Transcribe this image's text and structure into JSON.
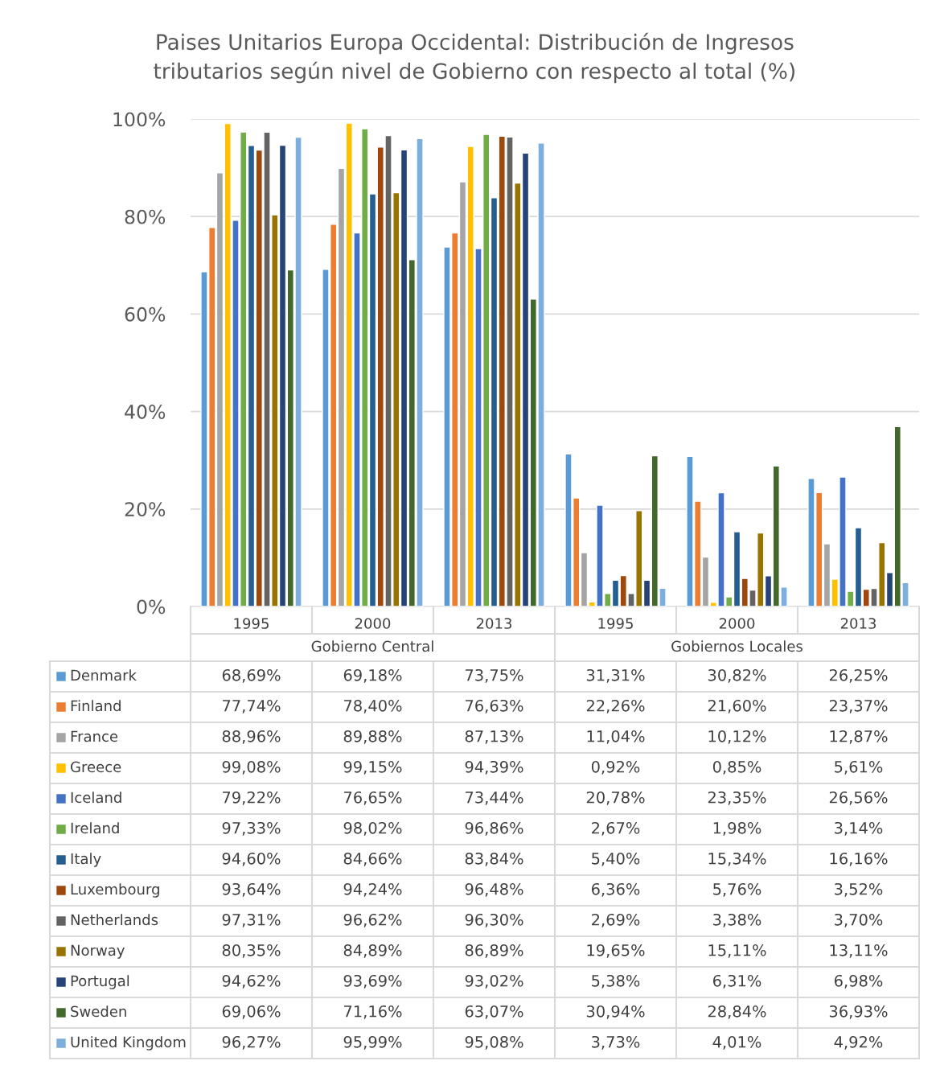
{
  "chart_data": {
    "type": "bar",
    "title": "Paises Unitarios Europa Occidental: Distribución de Ingresos\ntributarios según nivel de Gobierno con respecto al total (%)",
    "categories": [
      "1995",
      "2000",
      "2013",
      "1995",
      "2000",
      "2013"
    ],
    "annotations": [
      "Gobierno Central",
      "Gobiernos Locales"
    ],
    "ylim": [
      0,
      100
    ],
    "yticks": [
      {
        "value": 0,
        "label": "0%"
      },
      {
        "value": 20,
        "label": "20%"
      },
      {
        "value": 40,
        "label": "40%"
      },
      {
        "value": 60,
        "label": "60%"
      },
      {
        "value": 80,
        "label": "80%"
      },
      {
        "value": 100,
        "label": "100%"
      }
    ],
    "grid": "y",
    "legend": "bottom",
    "series": [
      {
        "name": "Denmark",
        "color": "#5b9bd5",
        "values": [
          68.69,
          69.18,
          73.75,
          31.31,
          30.82,
          26.25
        ],
        "value_labels": [
          "68,69%",
          "69,18%",
          "73,75%",
          "31,31%",
          "30,82%",
          "26,25%"
        ]
      },
      {
        "name": "Finland",
        "color": "#ed7d31",
        "values": [
          77.74,
          78.4,
          76.63,
          22.26,
          21.6,
          23.37
        ],
        "value_labels": [
          "77,74%",
          "78,40%",
          "76,63%",
          "22,26%",
          "21,60%",
          "23,37%"
        ]
      },
      {
        "name": "France",
        "color": "#a5a5a5",
        "values": [
          88.96,
          89.88,
          87.13,
          11.04,
          10.12,
          12.87
        ],
        "value_labels": [
          "88,96%",
          "89,88%",
          "87,13%",
          "11,04%",
          "10,12%",
          "12,87%"
        ]
      },
      {
        "name": "Greece",
        "color": "#ffc000",
        "values": [
          99.08,
          99.15,
          94.39,
          0.92,
          0.85,
          5.61
        ],
        "value_labels": [
          "99,08%",
          "99,15%",
          "94,39%",
          "0,92%",
          "0,85%",
          "5,61%"
        ]
      },
      {
        "name": "Iceland",
        "color": "#4472c4",
        "values": [
          79.22,
          76.65,
          73.44,
          20.78,
          23.35,
          26.56
        ],
        "value_labels": [
          "79,22%",
          "76,65%",
          "73,44%",
          "20,78%",
          "23,35%",
          "26,56%"
        ]
      },
      {
        "name": "Ireland",
        "color": "#70ad47",
        "values": [
          97.33,
          98.02,
          96.86,
          2.67,
          1.98,
          3.14
        ],
        "value_labels": [
          "97,33%",
          "98,02%",
          "96,86%",
          "2,67%",
          "1,98%",
          "3,14%"
        ]
      },
      {
        "name": "Italy",
        "color": "#255e91",
        "values": [
          94.6,
          84.66,
          83.84,
          5.4,
          15.34,
          16.16
        ],
        "value_labels": [
          "94,60%",
          "84,66%",
          "83,84%",
          "5,40%",
          "15,34%",
          "16,16%"
        ]
      },
      {
        "name": "Luxembourg",
        "color": "#9e480e",
        "values": [
          93.64,
          94.24,
          96.48,
          6.36,
          5.76,
          3.52
        ],
        "value_labels": [
          "93,64%",
          "94,24%",
          "96,48%",
          "6,36%",
          "5,76%",
          "3,52%"
        ]
      },
      {
        "name": "Netherlands",
        "color": "#636363",
        "values": [
          97.31,
          96.62,
          96.3,
          2.69,
          3.38,
          3.7
        ],
        "value_labels": [
          "97,31%",
          "96,62%",
          "96,30%",
          "2,69%",
          "3,38%",
          "3,70%"
        ]
      },
      {
        "name": "Norway",
        "color": "#997300",
        "values": [
          80.35,
          84.89,
          86.89,
          19.65,
          15.11,
          13.11
        ],
        "value_labels": [
          "80,35%",
          "84,89%",
          "86,89%",
          "19,65%",
          "15,11%",
          "13,11%"
        ]
      },
      {
        "name": "Portugal",
        "color": "#264478",
        "values": [
          94.62,
          93.69,
          93.02,
          5.38,
          6.31,
          6.98
        ],
        "value_labels": [
          "94,62%",
          "93,69%",
          "93,02%",
          "5,38%",
          "6,31%",
          "6,98%"
        ]
      },
      {
        "name": "Sweden",
        "color": "#43682b",
        "values": [
          69.06,
          71.16,
          63.07,
          30.94,
          28.84,
          36.93
        ],
        "value_labels": [
          "69,06%",
          "71,16%",
          "63,07%",
          "30,94%",
          "28,84%",
          "36,93%"
        ]
      },
      {
        "name": "United Kingdom",
        "color": "#7cafdd",
        "values": [
          96.27,
          95.99,
          95.08,
          3.73,
          4.01,
          4.92
        ],
        "value_labels": [
          "96,27%",
          "95,99%",
          "95,08%",
          "3,73%",
          "4,01%",
          "4,92%"
        ]
      }
    ]
  }
}
